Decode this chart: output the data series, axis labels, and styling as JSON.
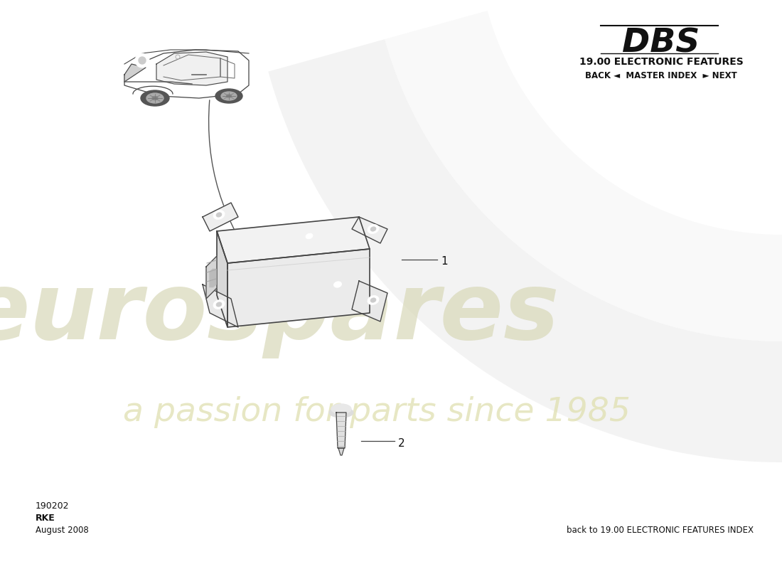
{
  "title_dbs": "DBS",
  "title_section": "19.00 ELECTRONIC FEATURES",
  "nav_text": "BACK ◄  MASTER INDEX  ► NEXT",
  "part_number": "190202",
  "part_name": "RKE",
  "date": "August 2008",
  "footer_text": "back to 19.00 ELECTRONIC FEATURES INDEX",
  "bg_color": "#ffffff",
  "part_labels": [
    "1",
    "2"
  ],
  "watermark_color_euro": "#d8d8b8",
  "watermark_color_passion": "#e0e0b0",
  "swoosh_color": "#cccccc"
}
